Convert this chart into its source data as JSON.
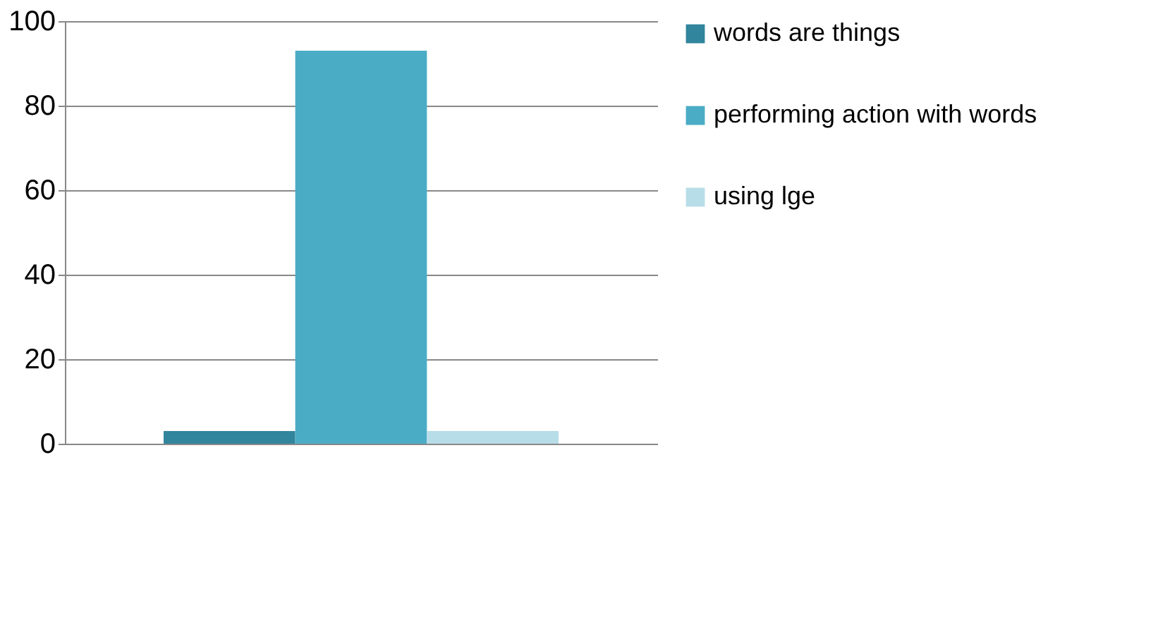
{
  "chart_data": {
    "type": "bar",
    "categories": [
      null
    ],
    "series": [
      {
        "name": "words are things",
        "color": "#31859c",
        "values": [
          3
        ]
      },
      {
        "name": "performing action with words",
        "color": "#4bacc6",
        "values": [
          93
        ]
      },
      {
        "name": "using lge",
        "color": "#b7dde8",
        "values": [
          3
        ]
      }
    ],
    "ylim": [
      0,
      100
    ],
    "yticks": [
      0,
      20,
      40,
      60,
      80,
      100
    ],
    "grid": "y",
    "legend": "right",
    "tick_labels": "y"
  }
}
